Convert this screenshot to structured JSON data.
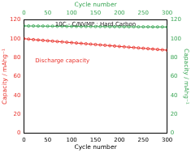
{
  "chart_data": {
    "type": "line",
    "xlabel": "Cycle number",
    "x2label": "Cycle number",
    "ylabel": "Capacity / mAhg⁻¹",
    "y2label": "Capacity / mAhg⁻¹",
    "x": [
      0,
      10,
      20,
      30,
      40,
      50,
      60,
      70,
      80,
      90,
      100,
      110,
      120,
      130,
      140,
      150,
      160,
      170,
      180,
      190,
      200,
      210,
      220,
      230,
      240,
      250,
      260,
      270,
      280,
      290,
      300
    ],
    "series": [
      {
        "name": "10C - C/NVMP : Hard Carbon",
        "color": "#3aa655",
        "axis": "y2",
        "marker": "circle",
        "values": [
          113.5,
          113.4,
          113.4,
          113.3,
          113.3,
          113.2,
          113.2,
          113.1,
          113.1,
          113.0,
          113.0,
          113.0,
          112.9,
          112.9,
          112.9,
          112.8,
          112.8,
          112.8,
          112.7,
          112.7,
          112.7,
          112.6,
          112.6,
          112.6,
          112.5,
          112.5,
          112.5,
          112.4,
          112.4,
          112.4,
          112.3
        ]
      },
      {
        "name": "Discharge capacity",
        "color": "#e8312a",
        "marker": "circle",
        "values": [
          100,
          99.5,
          99,
          98.6,
          98.2,
          97.8,
          97.4,
          97,
          96.6,
          96.2,
          95.8,
          95.4,
          95,
          94.6,
          94.2,
          93.8,
          93.4,
          93,
          92.6,
          92.2,
          91.8,
          91.4,
          91,
          90.6,
          90.2,
          89.8,
          89.4,
          89,
          88.6,
          88.2,
          87.8
        ]
      }
    ],
    "xlim": [
      0,
      300
    ],
    "xticks": [
      0,
      50,
      100,
      150,
      200,
      250,
      300
    ],
    "ylim": [
      0,
      120
    ],
    "yticks": [
      0,
      20,
      40,
      60,
      80,
      100,
      120
    ],
    "y2lim": [
      0,
      120
    ],
    "y2ticks": [
      0,
      20,
      40,
      60,
      80,
      100,
      120
    ],
    "grid": false
  }
}
